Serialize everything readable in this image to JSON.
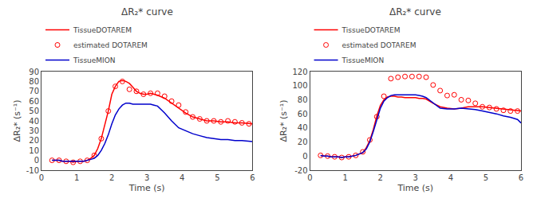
{
  "chart_data": [
    {
      "type": "line",
      "title": "ΔR₂* curve",
      "xlabel": "Time (s)",
      "ylabel": "ΔR₂* (s⁻¹)",
      "xlim": [
        0,
        6
      ],
      "ylim": [
        -10,
        90
      ],
      "xticks": [
        0,
        1,
        2,
        3,
        4,
        5,
        6
      ],
      "yticks": [
        -10,
        0,
        10,
        20,
        30,
        40,
        50,
        60,
        70,
        80,
        90
      ],
      "grid": false,
      "legend": "upper left",
      "series": [
        {
          "name": "TissueDOTAREM",
          "type": "line",
          "color": "#FF0000",
          "x": [
            0.3,
            0.4,
            0.5,
            0.6,
            0.7,
            0.8,
            0.9,
            1.0,
            1.1,
            1.2,
            1.3,
            1.4,
            1.5,
            1.6,
            1.7,
            1.8,
            1.9,
            2.0,
            2.1,
            2.2,
            2.3,
            2.4,
            2.5,
            2.6,
            2.7,
            2.8,
            2.9,
            3.0,
            3.1,
            3.2,
            3.3,
            3.5,
            3.7,
            3.9,
            4.1,
            4.3,
            4.5,
            4.7,
            4.9,
            5.1,
            5.3,
            5.5,
            5.7,
            5.9,
            6.0
          ],
          "values": [
            0,
            0,
            0,
            -1,
            -1,
            -1,
            -2,
            -1,
            -1,
            -1,
            0,
            2,
            5,
            12,
            22,
            35,
            50,
            67,
            75,
            80,
            81,
            80,
            78,
            74,
            70,
            68,
            67,
            67,
            68,
            67,
            66,
            63,
            58,
            53,
            48,
            44,
            42,
            40,
            40,
            39,
            39,
            38,
            38,
            37,
            37
          ]
        },
        {
          "name": "estimated DOTAREM",
          "type": "scatter",
          "marker": "open circle",
          "color": "#FF0000",
          "x": [
            0.3,
            0.5,
            0.7,
            0.9,
            1.1,
            1.3,
            1.5,
            1.7,
            1.9,
            2.1,
            2.3,
            2.5,
            2.7,
            2.9,
            3.1,
            3.3,
            3.5,
            3.7,
            3.9,
            4.1,
            4.3,
            4.5,
            4.7,
            4.9,
            5.1,
            5.3,
            5.5,
            5.7,
            5.9
          ],
          "values": [
            0,
            0,
            -1,
            -2,
            -1,
            0,
            5,
            22,
            50,
            75,
            80,
            72,
            70,
            67,
            68,
            68,
            65,
            60,
            56,
            49,
            44,
            42,
            40,
            40,
            39,
            40,
            39,
            38,
            37
          ]
        },
        {
          "name": "TissueMION",
          "type": "line",
          "color": "#0000CC",
          "x": [
            0.3,
            0.4,
            0.5,
            0.6,
            0.7,
            0.8,
            0.9,
            1.0,
            1.1,
            1.2,
            1.3,
            1.4,
            1.5,
            1.6,
            1.7,
            1.8,
            1.9,
            2.0,
            2.1,
            2.2,
            2.3,
            2.4,
            2.5,
            2.6,
            2.7,
            2.8,
            2.9,
            3.0,
            3.1,
            3.2,
            3.3,
            3.5,
            3.7,
            3.9,
            4.1,
            4.3,
            4.5,
            4.7,
            4.9,
            5.1,
            5.3,
            5.5,
            5.7,
            5.9,
            6.0
          ],
          "values": [
            0,
            0,
            0,
            -1,
            -1,
            -1,
            -1,
            -1,
            -1,
            -1,
            0,
            1,
            2,
            5,
            10,
            17,
            26,
            37,
            46,
            52,
            56,
            58,
            58,
            57,
            57,
            57,
            57,
            57,
            57,
            56,
            55,
            48,
            40,
            33,
            30,
            27,
            25,
            23,
            22,
            21,
            21,
            20,
            20,
            19,
            19
          ]
        }
      ]
    },
    {
      "type": "line",
      "title": "ΔR₂* curve",
      "xlabel": "Time (s)",
      "ylabel": "ΔR₂* (s⁻¹)",
      "xlim": [
        0,
        6
      ],
      "ylim": [
        -20,
        120
      ],
      "xticks": [
        0,
        1,
        2,
        3,
        4,
        5,
        6
      ],
      "yticks": [
        -20,
        0,
        20,
        40,
        60,
        80,
        100,
        120
      ],
      "grid": false,
      "legend": "upper left",
      "series": [
        {
          "name": "TissueDOTAREM",
          "type": "line",
          "color": "#FF0000",
          "x": [
            0.3,
            0.4,
            0.5,
            0.6,
            0.7,
            0.8,
            0.9,
            1.0,
            1.1,
            1.2,
            1.3,
            1.4,
            1.5,
            1.6,
            1.7,
            1.8,
            1.9,
            2.0,
            2.1,
            2.2,
            2.3,
            2.4,
            2.5,
            2.6,
            2.7,
            2.8,
            2.9,
            3.0,
            3.1,
            3.2,
            3.3,
            3.5,
            3.7,
            3.9,
            4.1,
            4.3,
            4.5,
            4.7,
            4.9,
            5.1,
            5.3,
            5.5,
            5.7,
            5.9,
            6.0
          ],
          "values": [
            1,
            0,
            0,
            -1,
            -1,
            -1,
            -2,
            -1,
            -1,
            0,
            1,
            3,
            5,
            12,
            22,
            38,
            57,
            72,
            80,
            84,
            85,
            85,
            84,
            84,
            83,
            83,
            83,
            83,
            82,
            82,
            81,
            75,
            70,
            68,
            67,
            68,
            70,
            70,
            70,
            69,
            68,
            67,
            66,
            65,
            64
          ]
        },
        {
          "name": "estimated DOTAREM",
          "type": "scatter",
          "marker": "open circle",
          "color": "#FF0000",
          "x": [
            0.3,
            0.5,
            0.7,
            0.9,
            1.1,
            1.3,
            1.5,
            1.7,
            1.9,
            2.1,
            2.3,
            2.5,
            2.7,
            2.9,
            3.1,
            3.3,
            3.5,
            3.7,
            3.9,
            4.1,
            4.3,
            4.5,
            4.7,
            4.9,
            5.1,
            5.3,
            5.5,
            5.7,
            5.9
          ],
          "values": [
            1,
            0,
            -1,
            -2,
            -1,
            1,
            6,
            23,
            56,
            85,
            110,
            112,
            113,
            113,
            113,
            112,
            101,
            93,
            86,
            87,
            80,
            79,
            75,
            70,
            69,
            67,
            65,
            64,
            64
          ]
        },
        {
          "name": "TissueMION",
          "type": "line",
          "color": "#0000CC",
          "x": [
            0.3,
            0.4,
            0.5,
            0.6,
            0.7,
            0.8,
            0.9,
            1.0,
            1.1,
            1.2,
            1.3,
            1.4,
            1.5,
            1.6,
            1.7,
            1.8,
            1.9,
            2.0,
            2.1,
            2.2,
            2.3,
            2.4,
            2.5,
            2.6,
            2.7,
            2.8,
            2.9,
            3.0,
            3.1,
            3.2,
            3.3,
            3.5,
            3.7,
            3.9,
            4.1,
            4.3,
            4.5,
            4.7,
            4.9,
            5.1,
            5.3,
            5.5,
            5.7,
            5.9,
            6.0
          ],
          "values": [
            1,
            0,
            0,
            -1,
            -1,
            -1,
            -2,
            -1,
            -1,
            0,
            1,
            3,
            5,
            10,
            20,
            35,
            52,
            68,
            78,
            83,
            86,
            87,
            87,
            87,
            87,
            87,
            87,
            87,
            86,
            85,
            83,
            75,
            68,
            67,
            67,
            68,
            67,
            66,
            64,
            62,
            60,
            57,
            55,
            52,
            47
          ]
        }
      ]
    }
  ]
}
